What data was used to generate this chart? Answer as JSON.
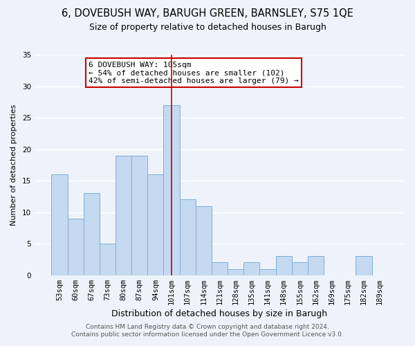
{
  "title1": "6, DOVEBUSH WAY, BARUGH GREEN, BARNSLEY, S75 1QE",
  "title2": "Size of property relative to detached houses in Barugh",
  "xlabel": "Distribution of detached houses by size in Barugh",
  "ylabel": "Number of detached properties",
  "categories": [
    "53sqm",
    "60sqm",
    "67sqm",
    "73sqm",
    "80sqm",
    "87sqm",
    "94sqm",
    "101sqm",
    "107sqm",
    "114sqm",
    "121sqm",
    "128sqm",
    "135sqm",
    "141sqm",
    "148sqm",
    "155sqm",
    "162sqm",
    "169sqm",
    "175sqm",
    "182sqm",
    "189sqm"
  ],
  "values": [
    16,
    9,
    13,
    5,
    19,
    19,
    16,
    27,
    12,
    11,
    2,
    1,
    2,
    1,
    3,
    2,
    3,
    0,
    0,
    3,
    0
  ],
  "bar_color": "#c5d9f1",
  "bar_edge_color": "#7bafd4",
  "vline_color": "#cc0000",
  "vline_x_index": 7,
  "ylim": [
    0,
    35
  ],
  "yticks": [
    0,
    5,
    10,
    15,
    20,
    25,
    30,
    35
  ],
  "annotation_title": "6 DOVEBUSH WAY: 105sqm",
  "annotation_line1": "← 54% of detached houses are smaller (102)",
  "annotation_line2": "42% of semi-detached houses are larger (79) →",
  "annotation_box_edge": "#cc0000",
  "footer1": "Contains HM Land Registry data © Crown copyright and database right 2024.",
  "footer2": "Contains public sector information licensed under the Open Government Licence v3.0.",
  "bg_color": "#eef3fb",
  "grid_color": "#ffffff",
  "title1_fontsize": 10.5,
  "title2_fontsize": 9,
  "xlabel_fontsize": 9,
  "ylabel_fontsize": 8,
  "tick_fontsize": 7.5,
  "annotation_fontsize": 8,
  "footer_fontsize": 6.5
}
